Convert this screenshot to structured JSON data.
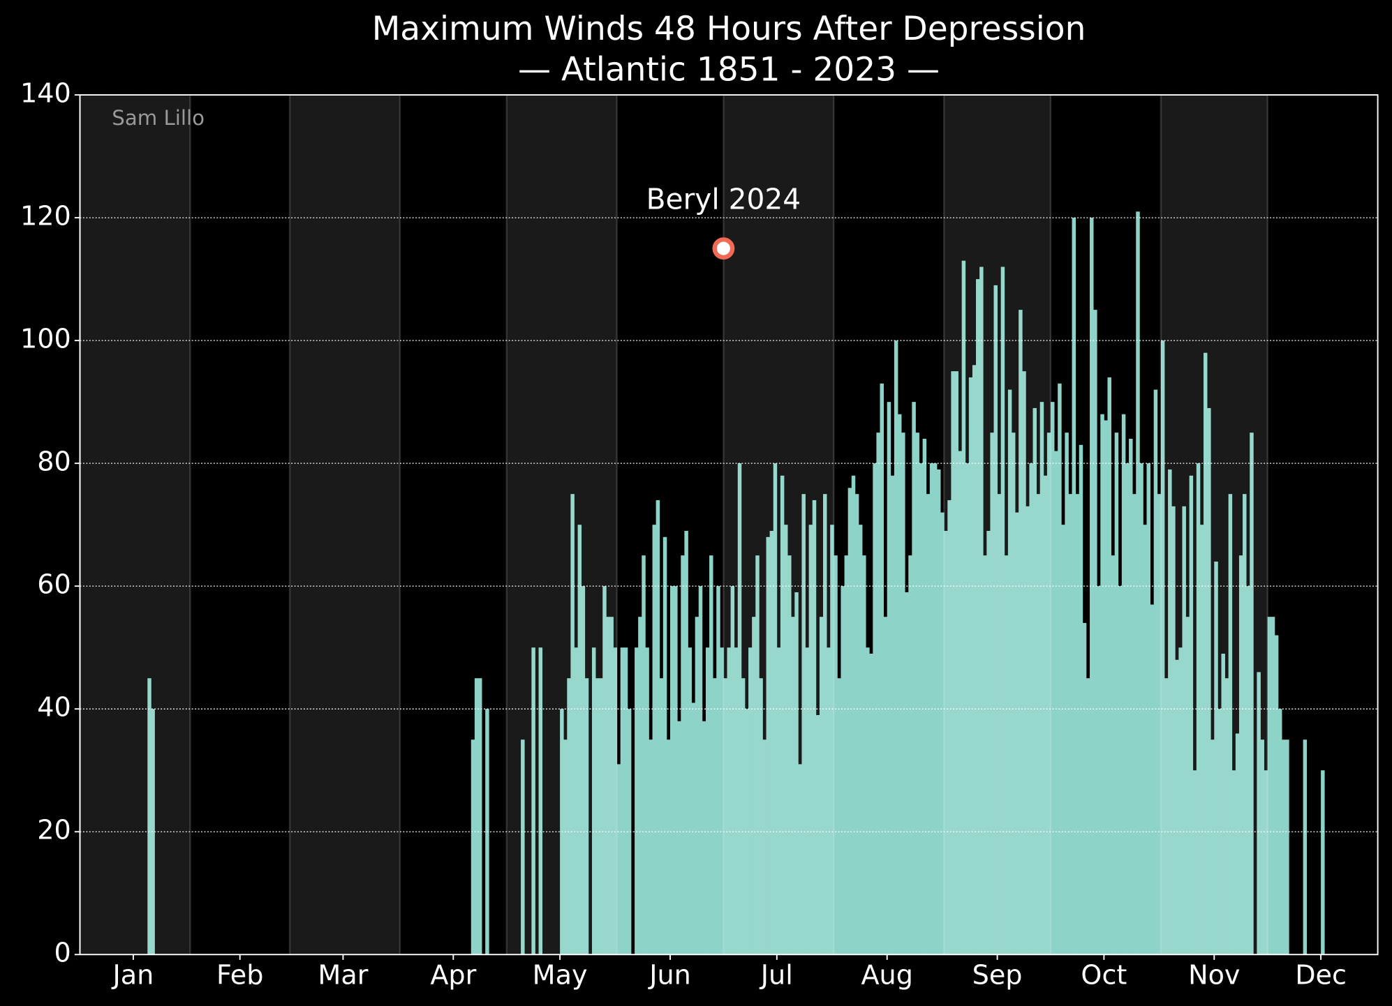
{
  "chart_data": {
    "type": "bar",
    "title": "Maximum Winds 48 Hours After Depression",
    "subtitle": "— Atlantic 1851 - 2023 —",
    "credit": "Sam Lillo",
    "color": "#8dd3c7",
    "x": [
      20,
      21,
      111,
      112,
      113,
      115,
      125,
      128,
      130,
      136,
      137,
      138,
      139,
      140,
      141,
      142,
      143,
      145,
      146,
      147,
      148,
      149,
      150,
      151,
      152,
      153,
      154,
      155,
      157,
      158,
      159,
      160,
      161,
      162,
      163,
      164,
      165,
      166,
      167,
      168,
      169,
      170,
      171,
      172,
      173,
      174,
      175,
      176,
      177,
      178,
      179,
      180,
      181,
      182,
      183,
      184,
      185,
      186,
      187,
      188,
      189,
      190,
      191,
      192,
      193,
      194,
      195,
      196,
      197,
      198,
      199,
      200,
      201,
      202,
      203,
      204,
      205,
      206,
      207,
      208,
      209,
      210,
      211,
      212,
      213,
      214,
      215,
      216,
      217,
      218,
      219,
      220,
      221,
      222,
      223,
      224,
      225,
      226,
      227,
      228,
      229,
      230,
      231,
      232,
      233,
      234,
      235,
      236,
      237,
      238,
      239,
      240,
      241,
      242,
      243,
      244,
      245,
      246,
      247,
      248,
      249,
      250,
      251,
      252,
      253,
      254,
      255,
      256,
      257,
      258,
      259,
      260,
      261,
      262,
      263,
      264,
      265,
      266,
      267,
      268,
      269,
      270,
      271,
      272,
      273,
      274,
      275,
      276,
      277,
      278,
      279,
      280,
      281,
      282,
      283,
      284,
      285,
      286,
      287,
      288,
      289,
      290,
      291,
      292,
      293,
      294,
      295,
      296,
      297,
      298,
      299,
      300,
      301,
      302,
      303,
      304,
      305,
      306,
      307,
      308,
      309,
      310,
      311,
      312,
      313,
      314,
      315,
      316,
      317,
      318,
      319,
      320,
      321,
      322,
      323,
      324,
      325,
      326,
      327,
      328,
      329,
      330,
      332,
      333,
      334,
      335,
      336,
      337,
      338,
      339,
      340,
      345,
      350
    ],
    "values": [
      45,
      40,
      35,
      45,
      45,
      40,
      35,
      50,
      50,
      40,
      35,
      45,
      75,
      50,
      70,
      60,
      45,
      50,
      45,
      45,
      60,
      55,
      55,
      50,
      31,
      50,
      50,
      40,
      50,
      55,
      65,
      50,
      35,
      70,
      74,
      45,
      68,
      35,
      60,
      60,
      38,
      65,
      69,
      50,
      41,
      55,
      60,
      38,
      50,
      65,
      45,
      60,
      50,
      45,
      50,
      60,
      50,
      80,
      45,
      40,
      50,
      55,
      65,
      45,
      35,
      68,
      69,
      80,
      50,
      78,
      70,
      65,
      55,
      59,
      31,
      75,
      50,
      70,
      74,
      39,
      55,
      75,
      50,
      70,
      65,
      45,
      60,
      65,
      76,
      78,
      75,
      70,
      65,
      50,
      49,
      80,
      85,
      93,
      55,
      90,
      78,
      100,
      88,
      85,
      59,
      65,
      90,
      85,
      80,
      84,
      75,
      80,
      80,
      79,
      72,
      69,
      74,
      95,
      95,
      82,
      113,
      80,
      94,
      96,
      110,
      112,
      65,
      69,
      85,
      109,
      75,
      112,
      65,
      92,
      85,
      72,
      105,
      95,
      73,
      80,
      89,
      75,
      90,
      78,
      85,
      90,
      82,
      93,
      70,
      85,
      75,
      120,
      75,
      83,
      54,
      45,
      120,
      105,
      60,
      88,
      87,
      94,
      65,
      85,
      60,
      88,
      80,
      84,
      75,
      121,
      80,
      70,
      80,
      57,
      92,
      75,
      100,
      45,
      79,
      73,
      48,
      50,
      73,
      55,
      78,
      30,
      80,
      70,
      98,
      89,
      35,
      64,
      40,
      49,
      45,
      75,
      30,
      36,
      65,
      75,
      60,
      85,
      46,
      35,
      30,
      55,
      55,
      52,
      40,
      35,
      35,
      35,
      30
    ],
    "highlight": {
      "name": "Beryl 2024",
      "x": 182,
      "value": 115,
      "color": "#f26a55"
    },
    "month_bands": [
      [
        1,
        32
      ],
      [
        60,
        91
      ],
      [
        121,
        152
      ],
      [
        182,
        213
      ],
      [
        244,
        274
      ],
      [
        305,
        335
      ]
    ],
    "xlim": [
      1,
      366
    ],
    "xticks": [
      {
        "value": 16,
        "label": "Jan"
      },
      {
        "value": 46,
        "label": "Feb"
      },
      {
        "value": 75,
        "label": "Mar"
      },
      {
        "value": 106,
        "label": "Apr"
      },
      {
        "value": 136,
        "label": "May"
      },
      {
        "value": 167,
        "label": "Jun"
      },
      {
        "value": 197,
        "label": "Jul"
      },
      {
        "value": 228,
        "label": "Aug"
      },
      {
        "value": 259,
        "label": "Sep"
      },
      {
        "value": 289,
        "label": "Oct"
      },
      {
        "value": 320,
        "label": "Nov"
      },
      {
        "value": 350,
        "label": "Dec"
      }
    ],
    "ylim": [
      0,
      140
    ],
    "yticks": [
      0,
      20,
      40,
      60,
      80,
      100,
      120,
      140
    ],
    "grid": true
  }
}
